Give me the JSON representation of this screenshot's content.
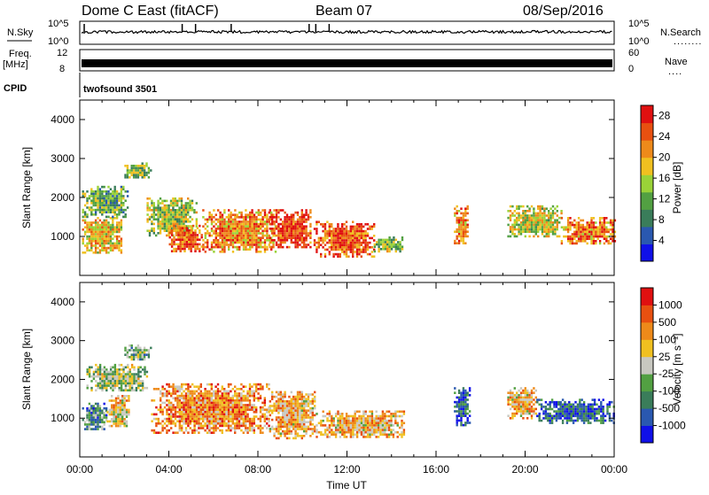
{
  "header": {
    "station": "Dome C East (fitACF)",
    "beam": "Beam 07",
    "date": "08/Sep/2016"
  },
  "strips": {
    "nsky_label": "N.Sky",
    "nsky_ticks": [
      "10^5",
      "10^0"
    ],
    "nsearch_label": "N.Search",
    "nsearch_dots": "........",
    "freq_label": "Freq.",
    "freq_unit": "[MHz]",
    "freq_ticks": [
      "12",
      "8"
    ],
    "nave_label": "Nave",
    "nave_dots": "....",
    "nave_ticks": [
      "60",
      "0"
    ],
    "cpid_label": "CPID",
    "cpid_value": "twofsound 3501"
  },
  "colors": {
    "power_scale": [
      "#1010e8",
      "#2a58b0",
      "#3a7d5a",
      "#52a042",
      "#9ad238",
      "#f0c020",
      "#ee8a1a",
      "#e85010",
      "#e01010"
    ],
    "velocity_scale": [
      "#1010e8",
      "#2a58b0",
      "#3a7d5a",
      "#52a042",
      "#c8c8c0",
      "#f0c020",
      "#ee8a1a",
      "#e85010",
      "#e01010"
    ]
  },
  "chart_data": [
    {
      "type": "heatmap",
      "name": "power",
      "xlabel": "",
      "ylabel": "Slant Range [km]",
      "xlim": [
        "00:00",
        "24:00"
      ],
      "ylim": [
        0,
        4500
      ],
      "ytick_labels": [
        "1000",
        "2000",
        "3000",
        "4000"
      ],
      "colorbar_label": "Power [dB]",
      "colorbar_ticks": [
        "4",
        "8",
        "12",
        "16",
        "20",
        "24",
        "28"
      ],
      "colorbar_range": [
        0,
        30
      ],
      "echo_regions": [
        {
          "t": [
            0.1,
            1.9
          ],
          "range": [
            600,
            1500
          ],
          "level": 0.62
        },
        {
          "t": [
            0.1,
            2.2
          ],
          "range": [
            1500,
            2300
          ],
          "level": 0.4
        },
        {
          "t": [
            2.0,
            3.2
          ],
          "range": [
            2500,
            2900
          ],
          "level": 0.45
        },
        {
          "t": [
            3.0,
            5.2
          ],
          "range": [
            1000,
            2000
          ],
          "level": 0.5
        },
        {
          "t": [
            4.0,
            5.5
          ],
          "range": [
            600,
            1300
          ],
          "level": 0.8
        },
        {
          "t": [
            5.5,
            8.8
          ],
          "range": [
            600,
            1700
          ],
          "level": 0.72
        },
        {
          "t": [
            8.5,
            10.4
          ],
          "range": [
            700,
            1700
          ],
          "level": 0.88
        },
        {
          "t": [
            10.5,
            13.2
          ],
          "range": [
            500,
            1400
          ],
          "level": 0.84
        },
        {
          "t": [
            13.2,
            14.5
          ],
          "range": [
            600,
            1000
          ],
          "level": 0.45
        },
        {
          "t": [
            16.8,
            17.4
          ],
          "range": [
            800,
            1800
          ],
          "level": 0.72
        },
        {
          "t": [
            19.2,
            21.6
          ],
          "range": [
            1000,
            1800
          ],
          "level": 0.55
        },
        {
          "t": [
            21.6,
            24.0
          ],
          "range": [
            800,
            1500
          ],
          "level": 0.76
        }
      ]
    },
    {
      "type": "heatmap",
      "name": "velocity",
      "xlabel": "Time UT",
      "ylabel": "Slant Range [km]",
      "xlim": [
        "00:00",
        "24:00"
      ],
      "ylim": [
        0,
        4500
      ],
      "xtick_labels": [
        "00:00",
        "04:00",
        "08:00",
        "12:00",
        "16:00",
        "20:00",
        "00:00"
      ],
      "ytick_labels": [
        "1000",
        "2000",
        "3000",
        "4000"
      ],
      "colorbar_label": "Velocity [m s⁻¹]",
      "colorbar_ticks": [
        "1000",
        "500",
        "100",
        "25",
        "-25",
        "-100",
        "-500",
        "-1000"
      ],
      "echo_regions": [
        {
          "t": [
            0.1,
            1.2
          ],
          "range": [
            700,
            1400
          ],
          "level": 0.3
        },
        {
          "t": [
            1.2,
            2.2
          ],
          "range": [
            800,
            1600
          ],
          "level": 0.6
        },
        {
          "t": [
            0.3,
            3.0
          ],
          "range": [
            1700,
            2400
          ],
          "level": 0.46
        },
        {
          "t": [
            2.0,
            3.2
          ],
          "range": [
            2500,
            2900
          ],
          "level": 0.4
        },
        {
          "t": [
            3.2,
            8.5
          ],
          "range": [
            600,
            1900
          ],
          "level": 0.72
        },
        {
          "t": [
            8.5,
            10.6
          ],
          "range": [
            500,
            1700
          ],
          "level": 0.66
        },
        {
          "t": [
            10.6,
            14.6
          ],
          "range": [
            500,
            1200
          ],
          "level": 0.64
        },
        {
          "t": [
            16.8,
            17.5
          ],
          "range": [
            800,
            1800
          ],
          "level": 0.2
        },
        {
          "t": [
            19.2,
            20.5
          ],
          "range": [
            1000,
            1800
          ],
          "level": 0.65
        },
        {
          "t": [
            20.5,
            24.0
          ],
          "range": [
            900,
            1500
          ],
          "level": 0.22
        }
      ]
    }
  ]
}
